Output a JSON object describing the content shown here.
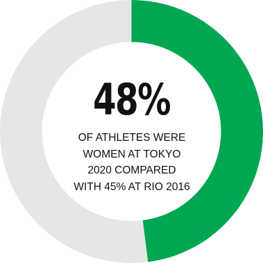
{
  "chart_data": {
    "type": "pie",
    "donut": true,
    "slices": [
      {
        "value": 48,
        "color": "#00a651"
      },
      {
        "value": 52,
        "color": "#e6e6e6"
      }
    ]
  },
  "headline": {
    "value": "48%"
  },
  "caption": {
    "lines": [
      "OF ATHLETES WERE",
      "WOMEN AT TOKYO",
      "2020 COMPARED",
      "WITH 45% AT RIO 2016"
    ]
  }
}
